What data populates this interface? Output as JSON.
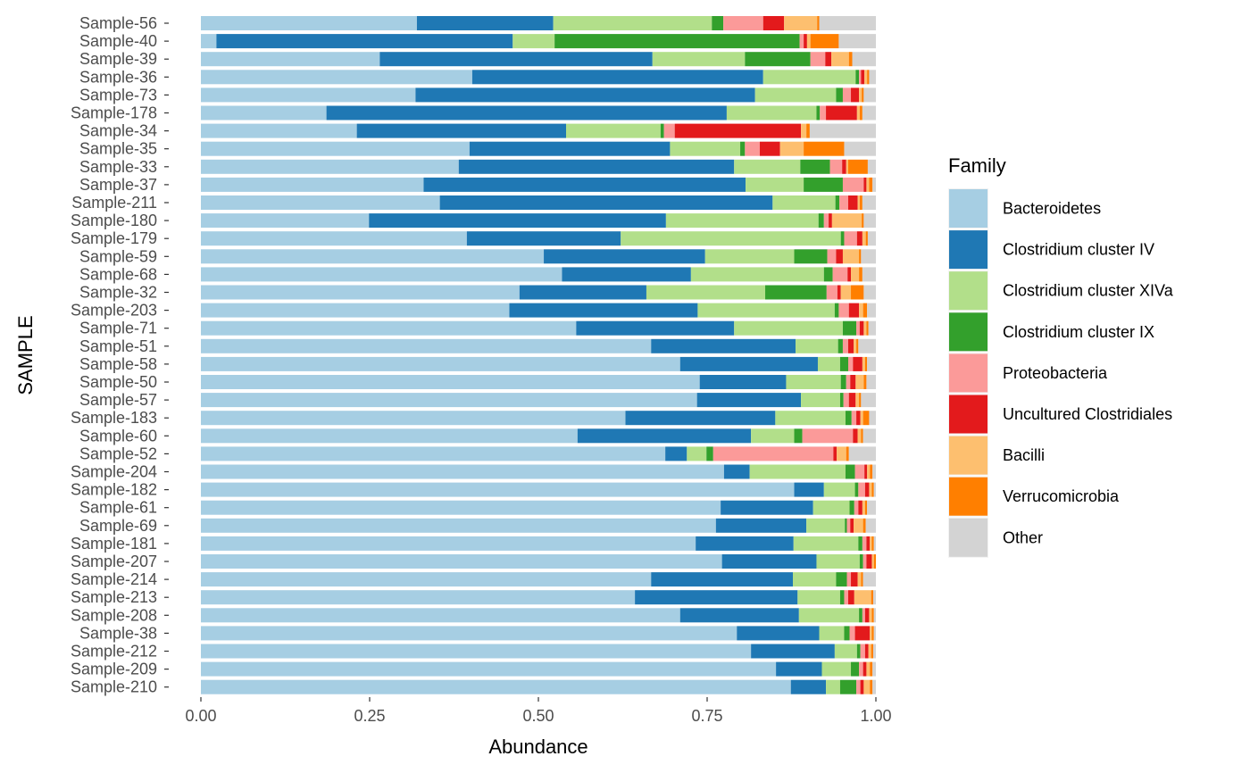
{
  "chart_data": {
    "type": "bar",
    "orientation": "horizontal",
    "stacked": true,
    "xlabel": "Abundance",
    "ylabel": "SAMPLE",
    "xlim": [
      0,
      1
    ],
    "x_ticks": [
      "0.00",
      "0.25",
      "0.50",
      "0.75",
      "1.00"
    ],
    "x_tick_values": [
      0,
      0.25,
      0.5,
      0.75,
      1
    ],
    "grid": false,
    "legend": {
      "title": "Family",
      "position": "right"
    },
    "categories": [
      "Sample-56",
      "Sample-40",
      "Sample-39",
      "Sample-36",
      "Sample-73",
      "Sample-178",
      "Sample-34",
      "Sample-35",
      "Sample-33",
      "Sample-37",
      "Sample-211",
      "Sample-180",
      "Sample-179",
      "Sample-59",
      "Sample-68",
      "Sample-32",
      "Sample-203",
      "Sample-71",
      "Sample-51",
      "Sample-58",
      "Sample-50",
      "Sample-57",
      "Sample-183",
      "Sample-60",
      "Sample-52",
      "Sample-204",
      "Sample-182",
      "Sample-61",
      "Sample-69",
      "Sample-181",
      "Sample-207",
      "Sample-214",
      "Sample-213",
      "Sample-208",
      "Sample-38",
      "Sample-212",
      "Sample-209",
      "Sample-210"
    ],
    "series": [
      {
        "name": "Bacteroidetes",
        "color": "#A6CEE3",
        "values": [
          0.32,
          0.023,
          0.265,
          0.402,
          0.318,
          0.186,
          0.231,
          0.398,
          0.382,
          0.33,
          0.354,
          0.249,
          0.394,
          0.508,
          0.535,
          0.472,
          0.457,
          0.556,
          0.667,
          0.71,
          0.739,
          0.735,
          0.629,
          0.558,
          0.688,
          0.775,
          0.879,
          0.77,
          0.763,
          0.733,
          0.772,
          0.667,
          0.643,
          0.71,
          0.794,
          0.815,
          0.852,
          0.874
        ]
      },
      {
        "name": "Clostridium cluster IV",
        "color": "#1F78B4",
        "values": [
          0.202,
          0.439,
          0.404,
          0.431,
          0.503,
          0.593,
          0.31,
          0.297,
          0.408,
          0.477,
          0.493,
          0.44,
          0.228,
          0.239,
          0.191,
          0.188,
          0.279,
          0.234,
          0.214,
          0.204,
          0.128,
          0.154,
          0.222,
          0.257,
          0.032,
          0.038,
          0.044,
          0.137,
          0.134,
          0.145,
          0.14,
          0.21,
          0.241,
          0.176,
          0.122,
          0.124,
          0.068,
          0.052
        ]
      },
      {
        "name": "Clostridium cluster XIVa",
        "color": "#B2DF8A",
        "values": [
          0.235,
          0.062,
          0.137,
          0.137,
          0.12,
          0.133,
          0.14,
          0.104,
          0.098,
          0.086,
          0.093,
          0.226,
          0.326,
          0.132,
          0.197,
          0.176,
          0.203,
          0.161,
          0.063,
          0.033,
          0.081,
          0.058,
          0.104,
          0.064,
          0.029,
          0.142,
          0.046,
          0.054,
          0.057,
          0.096,
          0.064,
          0.064,
          0.063,
          0.089,
          0.037,
          0.033,
          0.043,
          0.021
        ]
      },
      {
        "name": "Clostridium cluster IX",
        "color": "#33A02C",
        "values": [
          0.017,
          0.363,
          0.097,
          0.005,
          0.01,
          0.005,
          0.005,
          0.007,
          0.044,
          0.058,
          0.006,
          0.008,
          0.005,
          0.049,
          0.013,
          0.091,
          0.006,
          0.02,
          0.007,
          0.012,
          0.008,
          0.005,
          0.009,
          0.012,
          0.01,
          0.014,
          0.005,
          0.007,
          0.003,
          0.006,
          0.005,
          0.016,
          0.006,
          0.005,
          0.008,
          0.005,
          0.012,
          0.024
        ]
      },
      {
        "name": "Proteobacteria",
        "color": "#FB9A99",
        "values": [
          0.059,
          0.006,
          0.022,
          0.003,
          0.012,
          0.009,
          0.016,
          0.022,
          0.018,
          0.031,
          0.013,
          0.007,
          0.019,
          0.013,
          0.022,
          0.016,
          0.015,
          0.005,
          0.008,
          0.007,
          0.006,
          0.008,
          0.007,
          0.075,
          0.178,
          0.014,
          0.01,
          0.006,
          0.005,
          0.006,
          0.005,
          0.006,
          0.006,
          0.004,
          0.008,
          0.007,
          0.006,
          0.006
        ]
      },
      {
        "name": "Uncultured Clostridiales",
        "color": "#E31A1C",
        "values": [
          0.031,
          0.005,
          0.009,
          0.005,
          0.012,
          0.046,
          0.187,
          0.03,
          0.006,
          0.004,
          0.014,
          0.005,
          0.008,
          0.01,
          0.005,
          0.005,
          0.015,
          0.006,
          0.008,
          0.014,
          0.008,
          0.01,
          0.006,
          0.007,
          0.005,
          0.004,
          0.006,
          0.006,
          0.005,
          0.005,
          0.008,
          0.01,
          0.009,
          0.006,
          0.022,
          0.005,
          0.005,
          0.005
        ]
      },
      {
        "name": "Bacilli",
        "color": "#FDBF6F",
        "values": [
          0.049,
          0.005,
          0.026,
          0.004,
          0.004,
          0.004,
          0.008,
          0.035,
          0.003,
          0.004,
          0.003,
          0.044,
          0.005,
          0.024,
          0.012,
          0.015,
          0.006,
          0.004,
          0.004,
          0.004,
          0.012,
          0.005,
          0.004,
          0.005,
          0.014,
          0.004,
          0.004,
          0.004,
          0.014,
          0.003,
          0.003,
          0.005,
          0.025,
          0.004,
          0.003,
          0.004,
          0.005,
          0.009
        ]
      },
      {
        "name": "Verrucomicrobia",
        "color": "#FF7F00",
        "values": [
          0.003,
          0.042,
          0.005,
          0.003,
          0.003,
          0.004,
          0.005,
          0.06,
          0.029,
          0.005,
          0.004,
          0.003,
          0.003,
          0.003,
          0.005,
          0.019,
          0.006,
          0.003,
          0.003,
          0.003,
          0.004,
          0.003,
          0.009,
          0.003,
          0.004,
          0.004,
          0.003,
          0.003,
          0.004,
          0.003,
          0.003,
          0.003,
          0.003,
          0.003,
          0.003,
          0.003,
          0.004,
          0.004
        ]
      },
      {
        "name": "Other",
        "color": "#D3D3D3",
        "values": [
          0.084,
          0.055,
          0.035,
          0.01,
          0.018,
          0.02,
          0.098,
          0.047,
          0.012,
          0.005,
          0.02,
          0.018,
          0.012,
          0.022,
          0.02,
          0.018,
          0.013,
          0.011,
          0.026,
          0.013,
          0.014,
          0.022,
          0.01,
          0.019,
          0.04,
          0.005,
          0.003,
          0.013,
          0.015,
          0.003,
          0.0,
          0.019,
          0.004,
          0.003,
          0.003,
          0.004,
          0.005,
          0.005
        ]
      }
    ]
  }
}
